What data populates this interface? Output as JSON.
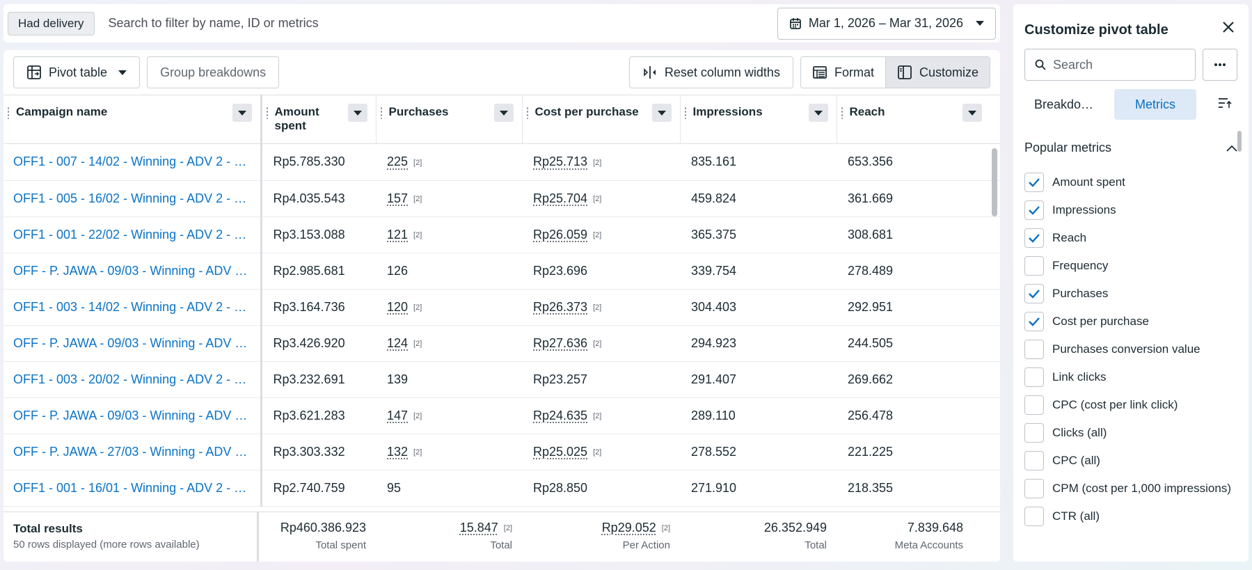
{
  "filter_bar": {
    "chip": "Had delivery",
    "search_placeholder": "Search to filter by name, ID or metrics",
    "date_range": "Mar 1, 2026 – Mar 31, 2026"
  },
  "toolbar": {
    "view_label": "Pivot table",
    "group_breakdowns": "Group breakdowns",
    "reset_widths": "Reset column widths",
    "format": "Format",
    "customize": "Customize"
  },
  "table": {
    "columns": [
      "Campaign name",
      "Amount spent",
      "Purchases",
      "Cost per purchase",
      "Impressions",
      "Reach"
    ],
    "rows": [
      {
        "name": "OFF1 - 007 - 14/02 - Winning - ADV 2 - …",
        "amount": "Rp5.785.330",
        "purchases": "225",
        "p_fn": "[2]",
        "cpp": "Rp25.713",
        "c_fn": "[2]",
        "impressions": "835.161",
        "reach": "653.356"
      },
      {
        "name": "OFF1 - 005 - 16/02 - Winning - ADV 2 - …",
        "amount": "Rp4.035.543",
        "purchases": "157",
        "p_fn": "[2]",
        "cpp": "Rp25.704",
        "c_fn": "[2]",
        "impressions": "459.824",
        "reach": "361.669"
      },
      {
        "name": "OFF1 - 001 - 22/02 - Winning - ADV 2 - …",
        "amount": "Rp3.153.088",
        "purchases": "121",
        "p_fn": "[2]",
        "cpp": "Rp26.059",
        "c_fn": "[2]",
        "impressions": "365.375",
        "reach": "308.681"
      },
      {
        "name": "OFF - P. JAWA - 09/03 - Winning - ADV …",
        "amount": "Rp2.985.681",
        "purchases": "126",
        "p_fn": "",
        "cpp": "Rp23.696",
        "c_fn": "",
        "impressions": "339.754",
        "reach": "278.489"
      },
      {
        "name": "OFF1 - 003 - 14/02 - Winning - ADV 2 - …",
        "amount": "Rp3.164.736",
        "purchases": "120",
        "p_fn": "[2]",
        "cpp": "Rp26.373",
        "c_fn": "[2]",
        "impressions": "304.403",
        "reach": "292.951"
      },
      {
        "name": "OFF - P. JAWA - 09/03 - Winning - ADV …",
        "amount": "Rp3.426.920",
        "purchases": "124",
        "p_fn": "[2]",
        "cpp": "Rp27.636",
        "c_fn": "[2]",
        "impressions": "294.923",
        "reach": "244.505"
      },
      {
        "name": "OFF1 - 003 - 20/02 - Winning - ADV 2 - …",
        "amount": "Rp3.232.691",
        "purchases": "139",
        "p_fn": "",
        "cpp": "Rp23.257",
        "c_fn": "",
        "impressions": "291.407",
        "reach": "269.662"
      },
      {
        "name": "OFF - P. JAWA - 09/03 - Winning - ADV …",
        "amount": "Rp3.621.283",
        "purchases": "147",
        "p_fn": "[2]",
        "cpp": "Rp24.635",
        "c_fn": "[2]",
        "impressions": "289.110",
        "reach": "256.478"
      },
      {
        "name": "OFF - P. JAWA - 27/03 - Winning - ADV …",
        "amount": "Rp3.303.332",
        "purchases": "132",
        "p_fn": "[2]",
        "cpp": "Rp25.025",
        "c_fn": "[2]",
        "impressions": "278.552",
        "reach": "221.225"
      },
      {
        "name": "OFF1 - 001 - 16/01 - Winning - ADV 2 - …",
        "amount": "Rp2.740.759",
        "purchases": "95",
        "p_fn": "",
        "cpp": "Rp28.850",
        "c_fn": "",
        "impressions": "271.910",
        "reach": "218.355"
      }
    ],
    "totals": {
      "title": "Total results",
      "subtitle": "50 rows displayed (more rows available)",
      "amount": "Rp460.386.923",
      "amount_label": "Total spent",
      "purchases": "15.847",
      "purchases_fn": "[2]",
      "purchases_label": "Total",
      "cpp": "Rp29.052",
      "cpp_fn": "[2]",
      "cpp_label": "Per Action",
      "impressions": "26.352.949",
      "impressions_label": "Total",
      "reach": "7.839.648",
      "reach_label": "Meta Accounts"
    }
  },
  "panel": {
    "title": "Customize pivot table",
    "search_placeholder": "Search",
    "tab_breakdowns": "Breakdo…",
    "tab_metrics": "Metrics",
    "section_title": "Popular metrics",
    "metrics": [
      {
        "label": "Amount spent",
        "checked": true
      },
      {
        "label": "Impressions",
        "checked": true
      },
      {
        "label": "Reach",
        "checked": true
      },
      {
        "label": "Frequency",
        "checked": false
      },
      {
        "label": "Purchases",
        "checked": true
      },
      {
        "label": "Cost per purchase",
        "checked": true
      },
      {
        "label": "Purchases conversion value",
        "checked": false
      },
      {
        "label": "Link clicks",
        "checked": false
      },
      {
        "label": "CPC (cost per link click)",
        "checked": false
      },
      {
        "label": "Clicks (all)",
        "checked": false
      },
      {
        "label": "CPC (all)",
        "checked": false
      },
      {
        "label": "CPM (cost per 1,000 impressions)",
        "checked": false
      },
      {
        "label": "CTR (all)",
        "checked": false
      }
    ]
  },
  "colors": {
    "link": "#0a73c8",
    "accent": "#0a6fc2",
    "accent_bg": "#dde9f6"
  }
}
